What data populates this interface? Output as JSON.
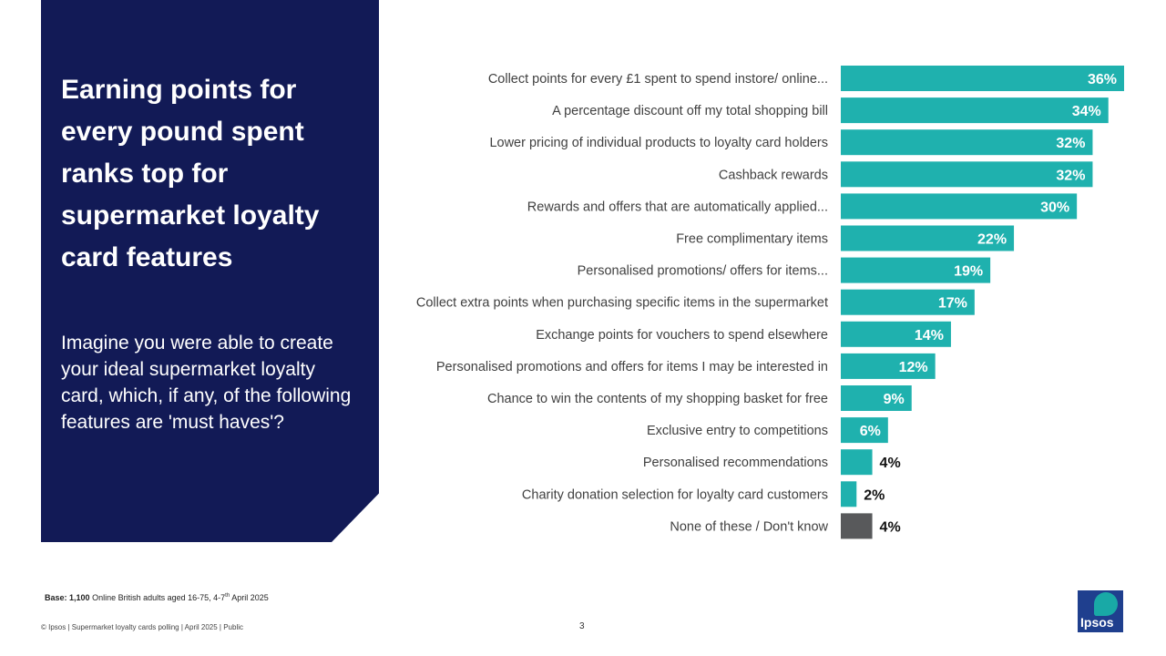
{
  "panel": {
    "title": "Earning points for every pound spent ranks top for supermarket loyalty card features",
    "question": "Imagine you were able to create your ideal supermarket loyalty card, which, if any, of the following features are 'must haves'?"
  },
  "colors": {
    "navy": "#121a56",
    "teal": "#1fb1ae",
    "grey": "#58595b"
  },
  "chart_data": {
    "type": "bar",
    "orientation": "horizontal",
    "categories": [
      "Collect points for every £1 spent to spend instore/ online...",
      "A percentage discount off my total shopping bill",
      "Lower pricing of individual products to loyalty card holders",
      "Cashback rewards",
      "Rewards and offers that are automatically applied...",
      "Free complimentary items",
      "Personalised promotions/ offers for items...",
      "Collect extra points when purchasing specific items in the supermarket",
      "Exchange points for vouchers to spend elsewhere",
      "Personalised promotions and offers for items I may be interested in",
      "Chance to win the contents of my shopping basket for free",
      "Exclusive entry to competitions",
      "Personalised recommendations",
      "Charity donation selection for loyalty card customers",
      "None of these / Don't know"
    ],
    "values": [
      36,
      34,
      32,
      32,
      30,
      22,
      19,
      17,
      14,
      12,
      9,
      6,
      4,
      2,
      4
    ],
    "labels": [
      "36%",
      "34%",
      "32%",
      "32%",
      "30%",
      "22%",
      "19%",
      "17%",
      "14%",
      "12%",
      "9%",
      "6%",
      "4%",
      "2%",
      "4%"
    ],
    "highlight_last": true,
    "unit": "%",
    "xlim": [
      0,
      36
    ]
  },
  "footer": {
    "base_label": "Base:",
    "base_value": "1,100",
    "base_text": "Online British adults aged 16-75, 4-7",
    "base_sup": "th",
    "base_tail": "April 2025",
    "copyright": "© Ipsos | Supermarket loyalty cards polling | April 2025 | Public",
    "page_number": "3"
  },
  "logo": {
    "text": "Ipsos"
  }
}
